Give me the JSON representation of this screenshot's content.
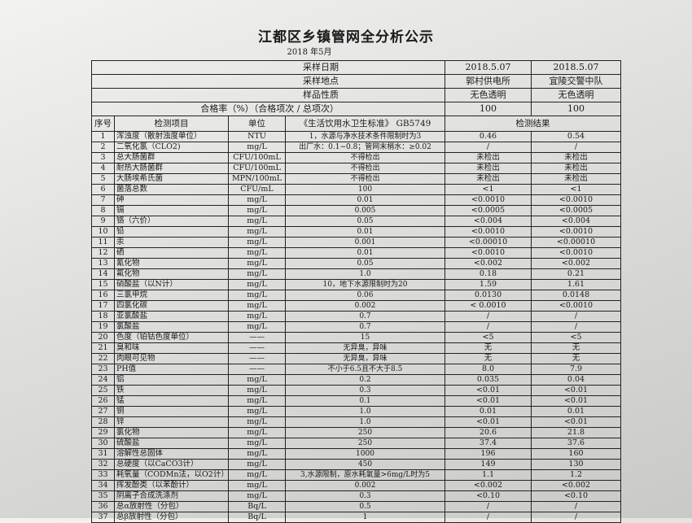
{
  "title": "江都区乡镇管网全分析公示",
  "subtitle": "2018  年5月",
  "header_rows": [
    {
      "label": "采样日期",
      "values": [
        "2018.5.07",
        "2018.5.07"
      ]
    },
    {
      "label": "采样地点",
      "values": [
        "郭村供电所",
        "宜陵交警中队"
      ]
    },
    {
      "label": "样品性质",
      "values": [
        "无色透明",
        "无色透明"
      ]
    },
    {
      "label": "合格率（%）（合格项次 / 总项次）",
      "values": [
        "100",
        "100"
      ]
    }
  ],
  "columns": {
    "no": "序号",
    "item": "检测项目",
    "unit": "单位",
    "standard": "《生活饮用水卫生标准》  GB5749",
    "results": "检测结果"
  },
  "rows": [
    [
      "1",
      "浑浊度（散射浊度单位）",
      "NTU",
      "1，水源与净水技术条件限制时为3",
      "0.46",
      "0.54"
    ],
    [
      "2",
      "二氧化氯（CLO2)",
      "mg/L",
      "出厂水：0.1~0.8；管网末梢水：≥0.02",
      "/",
      "/"
    ],
    [
      "3",
      "总大肠菌群",
      "CFU/100mL",
      "不得检出",
      "未检出",
      "未检出"
    ],
    [
      "4",
      "耐热大肠菌群",
      "CFU/100mL",
      "不得检出",
      "未检出",
      "未检出"
    ],
    [
      "5",
      "大肠埃希氏菌",
      "MPN/100mL",
      "不得检出",
      "未检出",
      "未检出"
    ],
    [
      "6",
      "菌落总数",
      "CFU/mL",
      "100",
      "<1",
      "<1"
    ],
    [
      "7",
      "砷",
      "mg/L",
      "0.01",
      "<0.0010",
      "<0.0010"
    ],
    [
      "8",
      "镉",
      "mg/L",
      "0.005",
      "<0.0005",
      "<0.0005"
    ],
    [
      "9",
      "铬（六价）",
      "mg/L",
      "0.05",
      "<0.004",
      "<0.004"
    ],
    [
      "10",
      "铅",
      "mg/L",
      "0.01",
      "<0.0010",
      "<0.0010"
    ],
    [
      "11",
      "汞",
      "mg/L",
      "0.001",
      "<0.00010",
      "<0.00010"
    ],
    [
      "12",
      "硒",
      "mg/L",
      "0.01",
      "<0.0010",
      "<0.0010"
    ],
    [
      "13",
      "氰化物",
      "mg/L",
      "0.05",
      "<0.002",
      "<0.002"
    ],
    [
      "14",
      "氟化物",
      "mg/L",
      "1.0",
      "0.18",
      "0.21"
    ],
    [
      "15",
      "硝酸盐（以N计）",
      "mg/L",
      "10，地下水源限制时为20",
      "1.59",
      "1.61"
    ],
    [
      "16",
      "三氯甲烷",
      "mg/L",
      "0.06",
      "0.0130",
      "0.0148"
    ],
    [
      "17",
      "四氯化碳",
      "mg/L",
      "0.002",
      "< 0.0010",
      "<0.0010"
    ],
    [
      "18",
      "亚氯酸盐",
      "mg/L",
      "0.7",
      "/",
      "/"
    ],
    [
      "19",
      "氯酸盐",
      "mg/L",
      "0.7",
      "/",
      "/"
    ],
    [
      "20",
      "色度（铂钴色度单位）",
      "——",
      "15",
      "<5",
      "<5"
    ],
    [
      "21",
      "臭和味",
      "——",
      "无异臭，异味",
      "无",
      "无"
    ],
    [
      "22",
      "肉眼可见物",
      "——",
      "无异臭，异味",
      "无",
      "无"
    ],
    [
      "23",
      "PH值",
      "——",
      "不小于6.5且不大于8.5",
      "8.0",
      "7.9"
    ],
    [
      "24",
      "铝",
      "mg/L",
      "0.2",
      "0.035",
      "0.04"
    ],
    [
      "25",
      "铁",
      "mg/L",
      "0.3",
      "<0.01",
      "<0.01"
    ],
    [
      "26",
      "锰",
      "mg/L",
      "0.1",
      "<0.01",
      "<0.01"
    ],
    [
      "27",
      "铜",
      "mg/L",
      "1.0",
      "0.01",
      "0.01"
    ],
    [
      "28",
      "锌",
      "mg/L",
      "1.0",
      "<0.01",
      "<0.01"
    ],
    [
      "29",
      "氯化物",
      "mg/L",
      "250",
      "20.6",
      "21.8"
    ],
    [
      "30",
      "硫酸盐",
      "mg/L",
      "250",
      "37.4",
      "37.6"
    ],
    [
      "31",
      "溶解性总固体",
      "mg/L",
      "1000",
      "196",
      "160"
    ],
    [
      "32",
      "总硬度（以CaCO3计）",
      "mg/L",
      "450",
      "149",
      "130"
    ],
    [
      "33",
      "耗氧量（CODMn法，以O2计）",
      "mg/L",
      "3,水源限制，原水耗氧量>6mg/L时为5",
      "1.1",
      "1.2"
    ],
    [
      "34",
      "挥发酚类（以苯酚计）",
      "mg/L",
      "0.002",
      "<0.002",
      "<0.002"
    ],
    [
      "35",
      "阴离子合成洗涤剂",
      "mg/L",
      "0.3",
      "<0.10",
      "<0.10"
    ],
    [
      "36",
      "总α放射性（分包）",
      "Bq/L",
      "0.5",
      "/",
      "/"
    ],
    [
      "37",
      "总β放射性（分包）",
      "Bq/L",
      "1",
      "/",
      "/"
    ]
  ]
}
